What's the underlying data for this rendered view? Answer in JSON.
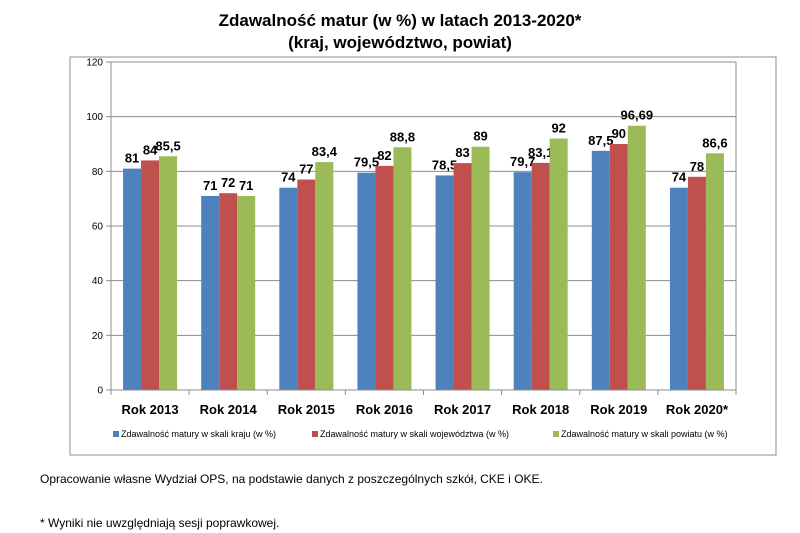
{
  "chart_data": {
    "type": "bar",
    "title": "Zdawalność matur (w %) w latach 2013-2020*",
    "subtitle": "(kraj, województwo, powiat)",
    "categories": [
      "Rok 2013",
      "Rok 2014",
      "Rok 2015",
      "Rok 2016",
      "Rok 2017",
      "Rok 2018",
      "Rok 2019",
      "Rok 2020*"
    ],
    "series": [
      {
        "name": "Zdawalność matury w skali kraju (w %)",
        "color": "#4f81bd",
        "values": [
          81,
          71,
          74,
          79.5,
          78.5,
          79.7,
          87.5,
          74
        ],
        "labels": [
          "81",
          "71",
          "74",
          "79,5",
          "78,5",
          "79,7",
          "87,5",
          "74"
        ]
      },
      {
        "name": "Zdawalność matury w skali województwa (w %)",
        "color": "#c0504d",
        "values": [
          84,
          72,
          77,
          82,
          83,
          83.1,
          90,
          78
        ],
        "labels": [
          "84",
          "72",
          "77",
          "82",
          "83",
          "83,1",
          "90",
          "78"
        ]
      },
      {
        "name": "Zdawalność matury w skali powiatu (w %)",
        "color": "#9bbb59",
        "values": [
          85.5,
          71,
          83.4,
          88.8,
          89,
          92,
          96.69,
          86.6
        ],
        "labels": [
          "85,5",
          "71",
          "83,4",
          "88,8",
          "89",
          "92",
          "96,69",
          "86,6"
        ]
      }
    ],
    "ylim": [
      0,
      120
    ],
    "yticks": [
      0,
      20,
      40,
      60,
      80,
      100,
      120
    ],
    "grid": true,
    "legend": "bottom"
  },
  "notes": {
    "source": "Opracowanie własne Wydział OPS, na podstawie danych z poszczególnych szkół, CKE i OKE.",
    "footnote": "* Wyniki nie uwzględniają sesji poprawkowej."
  }
}
